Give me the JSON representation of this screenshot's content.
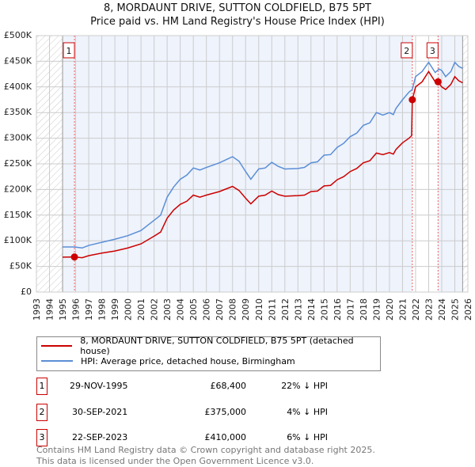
{
  "chart_data": {
    "type": "line",
    "title": "8, MORDAUNT DRIVE, SUTTON COLDFIELD, B75 5PT",
    "subtitle": "Price paid vs. HM Land Registry's House Price Index (HPI)",
    "xlim": [
      1993,
      2026
    ],
    "ylim": [
      0,
      500000
    ],
    "x_ticks": [
      "1993",
      "1994",
      "1995",
      "1996",
      "1997",
      "1998",
      "1999",
      "2000",
      "2001",
      "2002",
      "2003",
      "2004",
      "2005",
      "2006",
      "2007",
      "2008",
      "2009",
      "2010",
      "2011",
      "2012",
      "2013",
      "2014",
      "2015",
      "2016",
      "2017",
      "2018",
      "2019",
      "2020",
      "2021",
      "2022",
      "2023",
      "2024",
      "2025",
      "2026"
    ],
    "y_ticks": [
      {
        "v": 0,
        "label": "£0"
      },
      {
        "v": 50000,
        "label": "£50K"
      },
      {
        "v": 100000,
        "label": "£100K"
      },
      {
        "v": 150000,
        "label": "£150K"
      },
      {
        "v": 200000,
        "label": "£200K"
      },
      {
        "v": 250000,
        "label": "£250K"
      },
      {
        "v": 300000,
        "label": "£300K"
      },
      {
        "v": 350000,
        "label": "£350K"
      },
      {
        "v": 400000,
        "label": "£400K"
      },
      {
        "v": 450000,
        "label": "£450K"
      },
      {
        "v": 500000,
        "label": "£500K"
      }
    ],
    "grid": true,
    "data_range": [
      1995,
      2025.6
    ],
    "series": [
      {
        "name": "8, MORDAUNT DRIVE, SUTTON COLDFIELD, B75 5PT (detached house)",
        "color": "#cc0000",
        "x": [
          1995,
          1995.9,
          1996.5,
          1997,
          1998,
          1999,
          2000,
          2001,
          2002,
          2002.5,
          2003,
          2003.5,
          2004,
          2004.5,
          2005,
          2005.5,
          2006,
          2007,
          2007.5,
          2008,
          2008.5,
          2009,
          2009.4,
          2010,
          2010.5,
          2011,
          2011.5,
          2012,
          2013,
          2013.5,
          2014,
          2014.5,
          2015,
          2015.5,
          2016,
          2016.5,
          2017,
          2017.5,
          2018,
          2018.5,
          2019,
          2019.5,
          2020,
          2020.3,
          2020.5,
          2021,
          2021.5,
          2021.7,
          2021.75,
          2022,
          2022.5,
          2023,
          2023.5,
          2023.72,
          2024,
          2024.3,
          2024.7,
          2025,
          2025.3,
          2025.6
        ],
        "y": [
          68000,
          68400,
          67000,
          71000,
          76000,
          80000,
          86000,
          94000,
          109000,
          117000,
          144000,
          160000,
          171000,
          177000,
          189000,
          185000,
          189000,
          196000,
          201000,
          206000,
          198000,
          183000,
          172000,
          187000,
          189000,
          197000,
          190000,
          187000,
          188000,
          189000,
          196000,
          197000,
          207000,
          208000,
          219000,
          225000,
          235000,
          241000,
          252000,
          256000,
          271000,
          268000,
          272000,
          269000,
          278000,
          291000,
          300000,
          305000,
          375000,
          400000,
          410000,
          430000,
          410000,
          410000,
          400000,
          395000,
          405000,
          420000,
          412000,
          408000
        ]
      },
      {
        "name": "HPI: Average price, detached house, Birmingham",
        "color": "#5b8ed6",
        "x": [
          1995,
          1995.9,
          1996.5,
          1997,
          1998,
          1999,
          2000,
          2001,
          2002,
          2002.5,
          2003,
          2003.5,
          2004,
          2004.5,
          2005,
          2005.5,
          2006,
          2007,
          2007.5,
          2008,
          2008.5,
          2009,
          2009.4,
          2010,
          2010.5,
          2011,
          2011.5,
          2012,
          2013,
          2013.5,
          2014,
          2014.5,
          2015,
          2015.5,
          2016,
          2016.5,
          2017,
          2017.5,
          2018,
          2018.5,
          2019,
          2019.5,
          2020,
          2020.3,
          2020.5,
          2021,
          2021.5,
          2021.75,
          2022,
          2022.5,
          2023,
          2023.5,
          2023.8,
          2024,
          2024.3,
          2024.7,
          2025,
          2025.3,
          2025.6
        ],
        "y": [
          88000,
          88000,
          86000,
          91000,
          97000,
          103000,
          110000,
          120000,
          140000,
          150000,
          185000,
          205000,
          220000,
          228000,
          242000,
          238000,
          243000,
          252000,
          258000,
          264000,
          255000,
          235000,
          220000,
          240000,
          242000,
          253000,
          245000,
          240000,
          241000,
          243000,
          252000,
          254000,
          267000,
          268000,
          282000,
          290000,
          303000,
          310000,
          325000,
          330000,
          350000,
          345000,
          350000,
          346000,
          358000,
          375000,
          390000,
          395000,
          420000,
          430000,
          448000,
          428000,
          435000,
          432000,
          420000,
          430000,
          448000,
          440000,
          436000
        ]
      }
    ],
    "sales": [
      {
        "n": "1",
        "x": 1995.91,
        "y": 68400,
        "date": "29-NOV-1995",
        "price": "£68,400",
        "hpi": "22% ↓ HPI"
      },
      {
        "n": "2",
        "x": 2021.75,
        "y": 375000,
        "date": "30-SEP-2021",
        "price": "£375,000",
        "hpi": "4% ↓ HPI"
      },
      {
        "n": "3",
        "x": 2023.72,
        "y": 410000,
        "date": "22-SEP-2023",
        "price": "£410,000",
        "hpi": "6% ↓ HPI"
      }
    ]
  },
  "legend": {
    "red": "8, MORDAUNT DRIVE, SUTTON COLDFIELD, B75 5PT (detached house)",
    "blue": "HPI: Average price, detached house, Birmingham"
  },
  "footer": {
    "line1": "Contains HM Land Registry data © Crown copyright and database right 2025.",
    "line2": "This data is licensed under the Open Government Licence v3.0."
  }
}
